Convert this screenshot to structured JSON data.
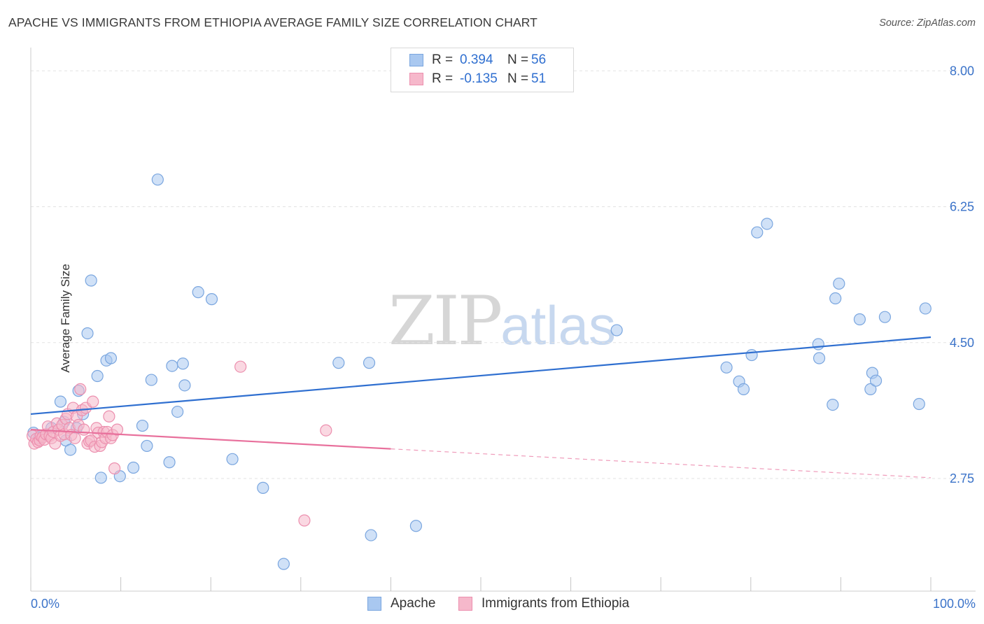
{
  "header": {
    "title": "APACHE VS IMMIGRANTS FROM ETHIOPIA AVERAGE FAMILY SIZE CORRELATION CHART",
    "source": "Source: ZipAtlas.com"
  },
  "watermark": {
    "zip": "ZIP",
    "atlas": "atlas"
  },
  "stats_legend": {
    "rows": [
      {
        "r_label": "R =",
        "r_value": "0.394",
        "n_label": "N =",
        "n_value": "56"
      },
      {
        "r_label": "R =",
        "r_value": "-0.135",
        "n_label": "N =",
        "n_value": "51"
      }
    ]
  },
  "colors": {
    "apache_fill": "#a9c8f0",
    "apache_stroke": "#7aa6df",
    "apache_line": "#2f6fd0",
    "ethiopia_fill": "#f6b8cb",
    "ethiopia_stroke": "#ec8fae",
    "ethiopia_line": "#e8709c",
    "tick_label": "#3b73c9",
    "grid": "#e3e3e3"
  },
  "chart_data": {
    "type": "scatter",
    "title": "APACHE VS IMMIGRANTS FROM ETHIOPIA AVERAGE FAMILY SIZE CORRELATION CHART",
    "xlabel": "",
    "ylabel": "Average Family Size",
    "xlim": [
      0,
      100
    ],
    "ylim": [
      1.3,
      8.3
    ],
    "x_tick_labels": [
      "0.0%",
      "100.0%"
    ],
    "y_ticks": [
      {
        "value": 8.0,
        "label": "8.00"
      },
      {
        "value": 6.25,
        "label": "6.25"
      },
      {
        "value": 4.5,
        "label": "4.50"
      },
      {
        "value": 2.75,
        "label": "2.75"
      }
    ],
    "grid": true,
    "series": [
      {
        "name": "Apache",
        "r": 0.394,
        "n": 56,
        "trend": {
          "x": [
            0,
            100
          ],
          "y": [
            3.58,
            4.57
          ],
          "dashed_from_x": null
        },
        "points": [
          [
            0.3,
            3.34
          ],
          [
            0.9,
            3.27
          ],
          [
            1.3,
            3.3
          ],
          [
            2.3,
            3.4
          ],
          [
            3.3,
            3.74
          ],
          [
            3.7,
            3.48
          ],
          [
            3.9,
            3.24
          ],
          [
            4.4,
            3.12
          ],
          [
            5.1,
            3.4
          ],
          [
            5.3,
            3.88
          ],
          [
            5.8,
            3.58
          ],
          [
            6.3,
            4.62
          ],
          [
            6.7,
            5.3
          ],
          [
            7.4,
            4.07
          ],
          [
            7.8,
            2.76
          ],
          [
            8.4,
            4.27
          ],
          [
            8.9,
            4.3
          ],
          [
            9.9,
            2.78
          ],
          [
            11.4,
            2.89
          ],
          [
            12.4,
            3.43
          ],
          [
            12.9,
            3.17
          ],
          [
            13.4,
            4.02
          ],
          [
            14.1,
            6.6
          ],
          [
            15.4,
            2.96
          ],
          [
            15.7,
            4.2
          ],
          [
            16.3,
            3.61
          ],
          [
            16.9,
            4.23
          ],
          [
            17.1,
            3.95
          ],
          [
            18.6,
            5.15
          ],
          [
            20.1,
            5.06
          ],
          [
            22.4,
            3.0
          ],
          [
            25.8,
            2.63
          ],
          [
            28.1,
            1.65
          ],
          [
            34.2,
            4.24
          ],
          [
            37.6,
            4.24
          ],
          [
            37.8,
            2.02
          ],
          [
            42.8,
            2.14
          ],
          [
            65.1,
            4.66
          ],
          [
            77.3,
            4.18
          ],
          [
            78.7,
            4.0
          ],
          [
            79.2,
            3.9
          ],
          [
            80.1,
            4.34
          ],
          [
            80.7,
            5.92
          ],
          [
            81.8,
            6.03
          ],
          [
            87.5,
            4.48
          ],
          [
            87.6,
            4.3
          ],
          [
            89.1,
            3.7
          ],
          [
            89.4,
            5.07
          ],
          [
            89.8,
            5.26
          ],
          [
            92.1,
            4.8
          ],
          [
            93.3,
            3.9
          ],
          [
            93.5,
            4.11
          ],
          [
            93.9,
            4.01
          ],
          [
            94.9,
            4.83
          ],
          [
            98.7,
            3.71
          ],
          [
            99.4,
            4.94
          ]
        ]
      },
      {
        "name": "Immigrants from Ethiopia",
        "r": -0.135,
        "n": 51,
        "trend": {
          "x": [
            0,
            100
          ],
          "y": [
            3.38,
            2.76
          ],
          "dashed_from_x": 40
        },
        "points": [
          [
            0.2,
            3.3
          ],
          [
            0.4,
            3.2
          ],
          [
            0.6,
            3.26
          ],
          [
            0.8,
            3.22
          ],
          [
            1.0,
            3.24
          ],
          [
            1.1,
            3.3
          ],
          [
            1.3,
            3.28
          ],
          [
            1.5,
            3.25
          ],
          [
            1.7,
            3.32
          ],
          [
            1.9,
            3.42
          ],
          [
            2.1,
            3.3
          ],
          [
            2.3,
            3.27
          ],
          [
            2.5,
            3.35
          ],
          [
            2.7,
            3.2
          ],
          [
            2.9,
            3.46
          ],
          [
            3.1,
            3.38
          ],
          [
            3.3,
            3.3
          ],
          [
            3.5,
            3.44
          ],
          [
            3.7,
            3.32
          ],
          [
            3.9,
            3.52
          ],
          [
            4.1,
            3.58
          ],
          [
            4.3,
            3.4
          ],
          [
            4.5,
            3.31
          ],
          [
            4.7,
            3.66
          ],
          [
            4.9,
            3.27
          ],
          [
            5.1,
            3.55
          ],
          [
            5.3,
            3.44
          ],
          [
            5.5,
            3.9
          ],
          [
            5.7,
            3.63
          ],
          [
            5.9,
            3.38
          ],
          [
            6.1,
            3.66
          ],
          [
            6.3,
            3.2
          ],
          [
            6.5,
            3.23
          ],
          [
            6.7,
            3.24
          ],
          [
            6.9,
            3.74
          ],
          [
            7.1,
            3.16
          ],
          [
            7.3,
            3.4
          ],
          [
            7.5,
            3.34
          ],
          [
            7.7,
            3.17
          ],
          [
            7.9,
            3.22
          ],
          [
            8.1,
            3.35
          ],
          [
            8.3,
            3.27
          ],
          [
            8.5,
            3.35
          ],
          [
            8.7,
            3.55
          ],
          [
            8.9,
            3.27
          ],
          [
            9.1,
            3.31
          ],
          [
            9.3,
            2.88
          ],
          [
            9.6,
            3.38
          ],
          [
            23.3,
            4.19
          ],
          [
            30.4,
            2.21
          ],
          [
            32.8,
            3.37
          ]
        ]
      }
    ]
  },
  "legend": {
    "items": [
      {
        "label": "Apache"
      },
      {
        "label": "Immigrants from Ethiopia"
      }
    ]
  }
}
